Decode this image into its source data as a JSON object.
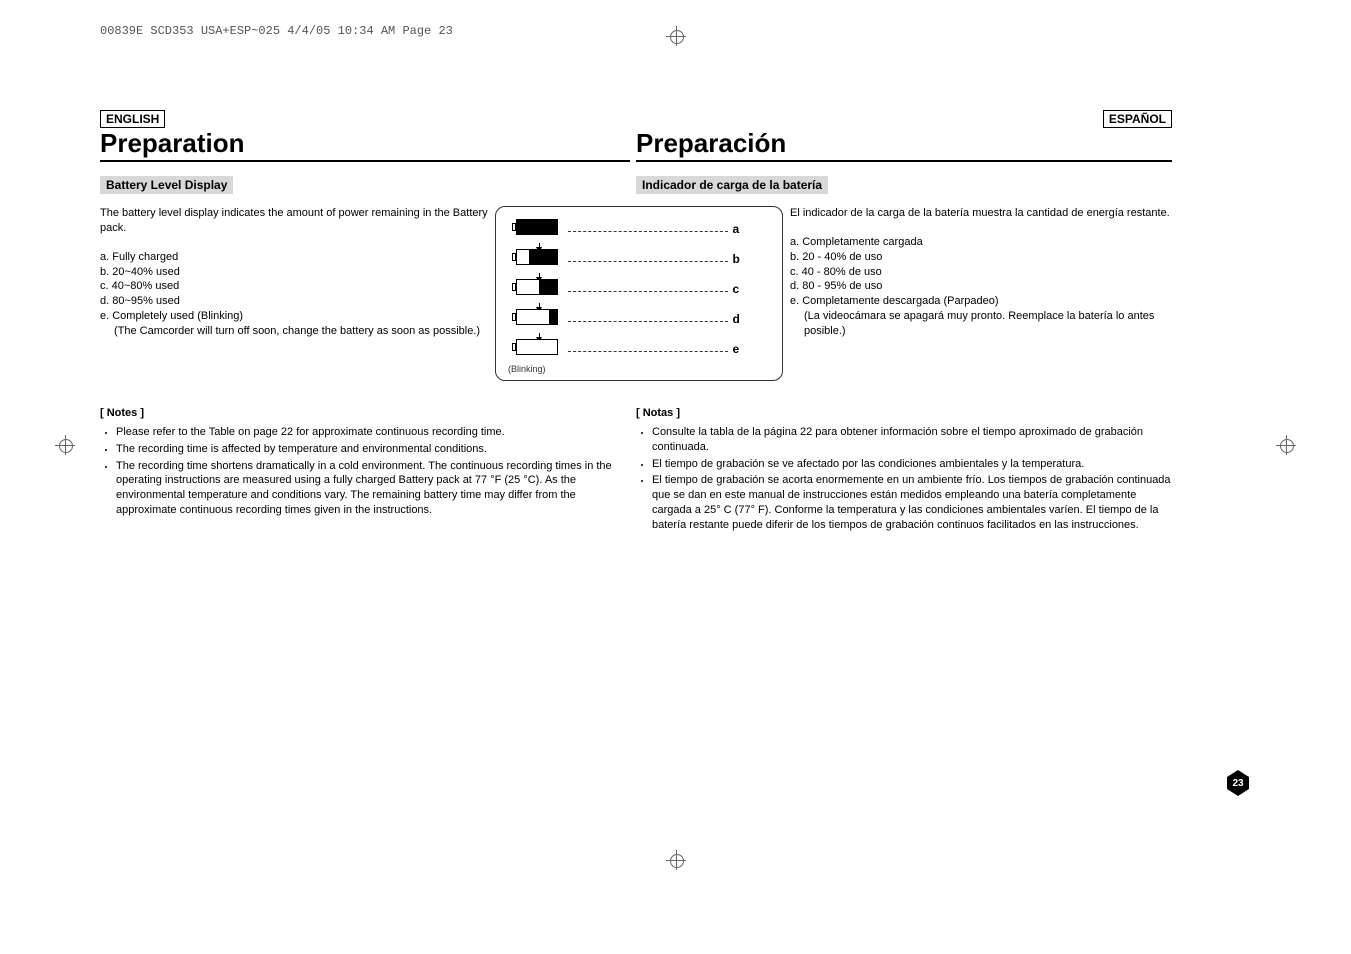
{
  "header_line": "00839E SCD353 USA+ESP~025  4/4/05 10:34 AM  Page 23",
  "lang": {
    "left": "ENGLISH",
    "right": "ESPAÑOL"
  },
  "title": {
    "left": "Preparation",
    "right": "Preparación"
  },
  "subhead": {
    "left": "Battery Level Display",
    "right": "Indicador de carga de la batería"
  },
  "intro": {
    "left": "The battery level display indicates the amount of power remaining in the Battery pack.",
    "right": "El indicador de la carga de la batería muestra la cantidad de energía restante."
  },
  "list_left": {
    "a": "a.  Fully charged",
    "b": "b.  20~40% used",
    "c": "c.  40~80% used",
    "d": "d.  80~95% used",
    "e1": "e.  Completely used (Blinking)",
    "e2": "(The Camcorder will turn off soon, change the battery as soon as possible.)"
  },
  "list_right": {
    "a": "a.  Completamente cargada",
    "b": "b.  20 - 40% de uso",
    "c": "c.  40 - 80% de uso",
    "d": "d.  80 - 95% de uso",
    "e1": "e.  Completamente descargada (Parpadeo)",
    "e2": "(La videocámara se apagará muy pronto. Reemplace la batería lo antes posible.)"
  },
  "figure": {
    "labels": {
      "a": "a",
      "b": "b",
      "c": "c",
      "d": "d",
      "e": "e"
    },
    "fills_pct": {
      "a": 100,
      "b": 70,
      "c": 45,
      "d": 20,
      "e": 0
    },
    "blinking": "(Blinking)",
    "border_color": "#333333",
    "dash_color": "#333333",
    "fill_color": "#000000"
  },
  "notes": {
    "left_title": "[ Notes ]",
    "right_title": "[ Notas ]",
    "left": [
      "Please refer to the Table on page 22 for approximate continuous recording time.",
      "The recording time is affected by temperature and environmental conditions.",
      "The recording time shortens dramatically in a cold environment. The continuous recording times in the operating instructions are measured using a fully charged Battery pack at 77 °F (25 °C). As the environmental temperature and conditions vary. The remaining battery time may differ from the approximate continuous recording times given in the instructions."
    ],
    "right": [
      "Consulte la tabla de la página 22 para obtener información sobre el tiempo aproximado de grabación continuada.",
      "El tiempo de grabación se ve afectado por las condiciones ambientales y la temperatura.",
      "El tiempo de grabación se acorta enormemente en un ambiente frío. Los tiempos de grabación continuada que se dan en este manual de instrucciones están medidos empleando una batería completamente cargada a 25° C (77° F). Conforme la temperatura y las condiciones ambientales varíen. El tiempo de la batería restante puede diferir de los tiempos de grabación continuos facilitados en las instrucciones."
    ]
  },
  "page_number": "23",
  "colors": {
    "background": "#ffffff",
    "text": "#000000",
    "subhead_bg": "#d8d8d8",
    "crop": "#666666"
  }
}
